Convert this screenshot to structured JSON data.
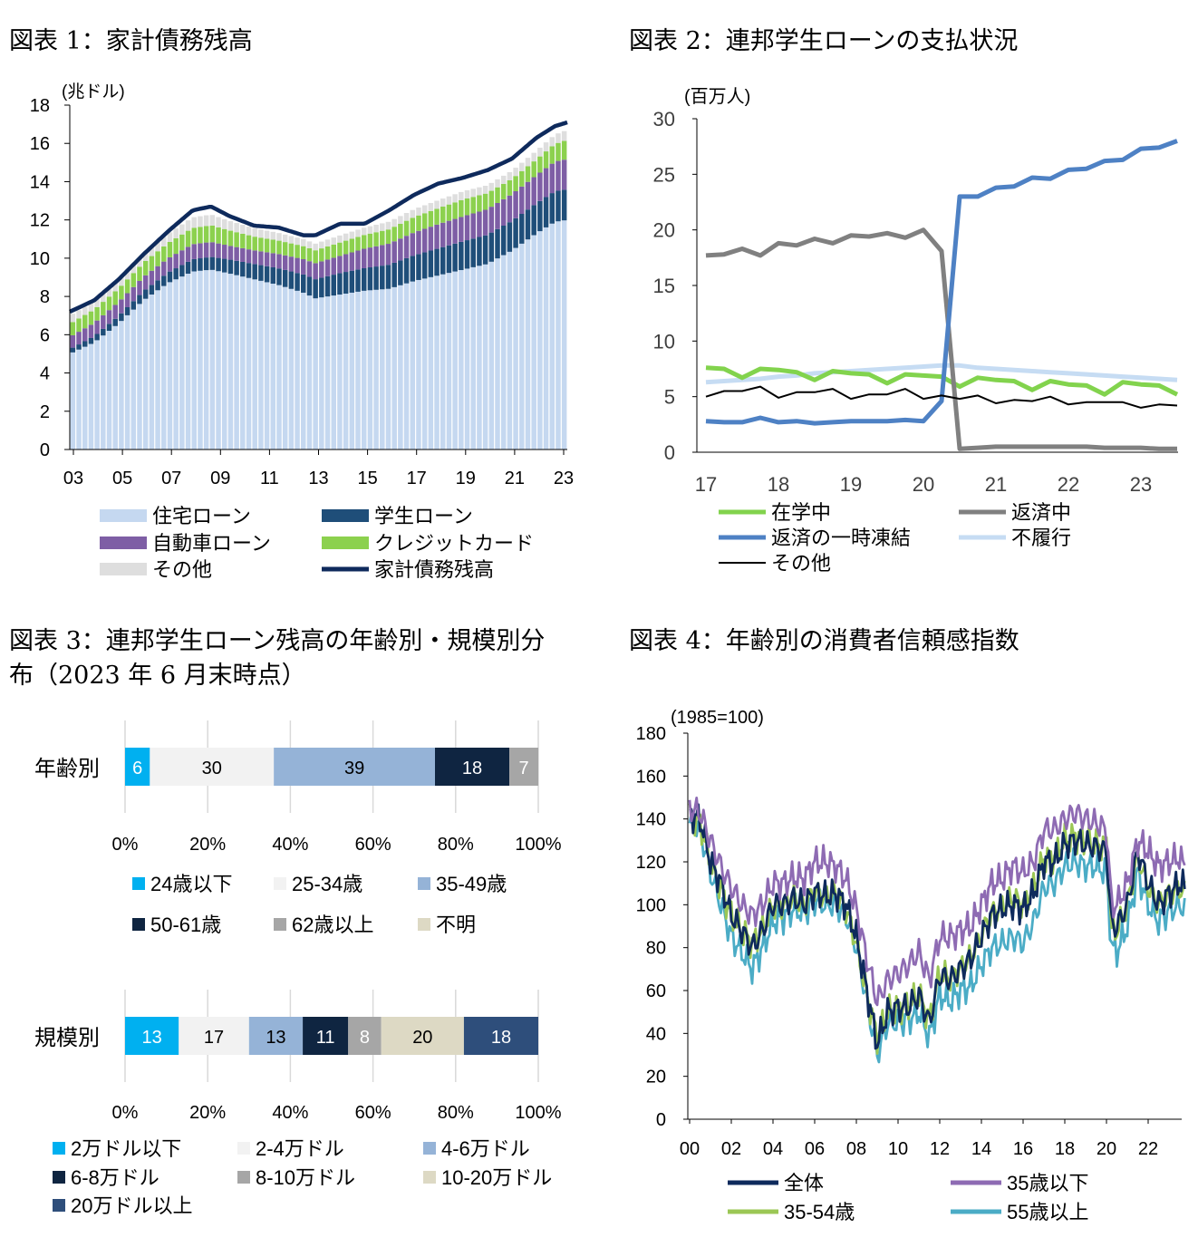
{
  "figures": {
    "fig1_title": "図表 1：家計債務残高",
    "fig2_title": "図表 2：連邦学生ローンの支払状況",
    "fig3_title_line1": "図表 3：連邦学生ローン残高の年齢別・規模別分",
    "fig3_title_line2": "布（2023 年 6 月末時点）",
    "fig4_title": "図表 4：年齢別の消費者信頼感指数"
  },
  "colors": {
    "housing": "#c5d8f0",
    "student": "#1f4e79",
    "auto": "#7e5ea5",
    "credit": "#8cd14e",
    "other1": "#dedede",
    "total1": "#0e2a5c",
    "in_school": "#82d34d",
    "repaying": "#808080",
    "forbearance": "#4e81c4",
    "default": "#c6dcf3",
    "other2": "#000000",
    "c_all": "#0e2a5c",
    "c_u35": "#8e6bb3",
    "c_35_54": "#9bc755",
    "c_55": "#4bacc6",
    "age_cols": [
      "#00b0f0",
      "#f2f2f2",
      "#95b3d7",
      "#0f2541",
      "#a6a6a6",
      "#ddd9c4"
    ],
    "size_cols": [
      "#00b0f0",
      "#f2f2f2",
      "#95b3d7",
      "#0f2541",
      "#a6a6a6",
      "#ddd9c4",
      "#2e4e7b"
    ]
  },
  "chart_data": [
    {
      "id": "fig1",
      "type": "bar",
      "title": "図表 1：家計債務残高",
      "ylabel": "(兆ドル)",
      "ylim": [
        0,
        18
      ],
      "yticks": [
        0,
        2,
        4,
        6,
        8,
        10,
        12,
        14,
        16,
        18
      ],
      "xtick_labels": [
        "03",
        "05",
        "07",
        "09",
        "11",
        "13",
        "15",
        "17",
        "19",
        "21",
        "23"
      ],
      "x_start_year": 2003,
      "x_end_year": 2023.25,
      "anchors": {
        "t": [
          2003,
          2004,
          2005,
          2006,
          2007,
          2008,
          2008.75,
          2009.5,
          2010.5,
          2011.5,
          2012.5,
          2013.0,
          2014,
          2015,
          2016,
          2017,
          2018,
          2019,
          2020,
          2021,
          2022,
          2022.75,
          2023.25
        ],
        "housing": [
          5.0,
          5.6,
          6.6,
          7.8,
          8.7,
          9.3,
          9.4,
          9.2,
          8.9,
          8.6,
          8.2,
          7.9,
          8.1,
          8.3,
          8.4,
          8.8,
          9.1,
          9.4,
          9.7,
          10.4,
          11.3,
          11.9,
          12.0
        ],
        "student": [
          0.24,
          0.32,
          0.39,
          0.48,
          0.55,
          0.64,
          0.67,
          0.73,
          0.8,
          0.87,
          0.95,
          1.0,
          1.12,
          1.18,
          1.26,
          1.34,
          1.41,
          1.48,
          1.52,
          1.55,
          1.57,
          1.6,
          1.6
        ],
        "auto": [
          0.64,
          0.7,
          0.73,
          0.74,
          0.74,
          0.79,
          0.78,
          0.72,
          0.71,
          0.75,
          0.8,
          0.84,
          0.9,
          1.02,
          1.1,
          1.2,
          1.27,
          1.3,
          1.34,
          1.4,
          1.47,
          1.55,
          1.58
        ],
        "credit": [
          0.69,
          0.7,
          0.71,
          0.75,
          0.8,
          0.85,
          0.87,
          0.8,
          0.72,
          0.7,
          0.68,
          0.67,
          0.7,
          0.72,
          0.75,
          0.8,
          0.83,
          0.88,
          0.84,
          0.79,
          0.83,
          0.92,
          1.0
        ],
        "other": [
          0.44,
          0.42,
          0.45,
          0.47,
          0.5,
          0.55,
          0.56,
          0.5,
          0.44,
          0.4,
          0.37,
          0.35,
          0.37,
          0.38,
          0.4,
          0.41,
          0.42,
          0.43,
          0.41,
          0.43,
          0.45,
          0.49,
          0.52
        ],
        "total": [
          7.2,
          7.8,
          8.9,
          10.2,
          11.4,
          12.5,
          12.7,
          12.2,
          11.7,
          11.6,
          11.2,
          11.2,
          11.8,
          11.8,
          12.5,
          13.3,
          13.9,
          14.2,
          14.6,
          15.2,
          16.3,
          16.9,
          17.1
        ]
      },
      "legend": [
        "住宅ローン",
        "学生ローン",
        "自動車ローン",
        "クレジットカード",
        "その他",
        "家計債務残高"
      ]
    },
    {
      "id": "fig2",
      "type": "line",
      "title": "図表 2：連邦学生ローンの支払状況",
      "ylabel": "(百万人)",
      "ylim": [
        0,
        30
      ],
      "yticks": [
        0,
        5,
        10,
        15,
        20,
        25,
        30
      ],
      "xtick_labels": [
        "17",
        "18",
        "19",
        "20",
        "21",
        "22",
        "23"
      ],
      "x_start": 2017,
      "x_end": 2023.6,
      "x": [
        2017.0,
        2017.25,
        2017.5,
        2017.75,
        2018.0,
        2018.25,
        2018.5,
        2018.75,
        2019.0,
        2019.25,
        2019.5,
        2019.75,
        2020.0,
        2020.25,
        2020.5,
        2020.75,
        2021.0,
        2021.25,
        2021.5,
        2021.75,
        2022.0,
        2022.25,
        2022.5,
        2022.75,
        2023.0,
        2023.25,
        2023.5
      ],
      "series": [
        {
          "name": "在学中",
          "values": [
            7.6,
            7.5,
            6.7,
            7.5,
            7.4,
            7.2,
            6.5,
            7.3,
            7.1,
            7.0,
            6.2,
            7.0,
            6.9,
            6.8,
            5.9,
            6.7,
            6.5,
            6.4,
            5.6,
            6.4,
            6.1,
            6.0,
            5.2,
            6.3,
            6.1,
            6.0,
            5.2
          ]
        },
        {
          "name": "返済中",
          "values": [
            17.7,
            17.8,
            18.3,
            17.7,
            18.8,
            18.6,
            19.2,
            18.8,
            19.5,
            19.4,
            19.7,
            19.3,
            20.0,
            18.1,
            0.3,
            0.4,
            0.5,
            0.5,
            0.5,
            0.5,
            0.5,
            0.5,
            0.4,
            0.4,
            0.4,
            0.3,
            0.3
          ]
        },
        {
          "name": "返済の一時凍結",
          "values": [
            2.8,
            2.7,
            2.7,
            3.1,
            2.7,
            2.8,
            2.6,
            2.7,
            2.8,
            2.8,
            2.8,
            2.9,
            2.8,
            4.6,
            23.0,
            23.0,
            23.8,
            23.9,
            24.7,
            24.6,
            25.4,
            25.5,
            26.2,
            26.3,
            27.3,
            27.4,
            28.0
          ]
        },
        {
          "name": "不履行",
          "values": [
            6.3,
            6.4,
            6.5,
            6.6,
            6.8,
            6.9,
            7.1,
            7.2,
            7.3,
            7.4,
            7.5,
            7.6,
            7.7,
            7.8,
            7.8,
            7.6,
            7.5,
            7.4,
            7.3,
            7.2,
            7.1,
            7.0,
            6.9,
            6.8,
            6.7,
            6.6,
            6.5
          ]
        },
        {
          "name": "その他",
          "values": [
            5.0,
            5.5,
            5.5,
            5.9,
            4.9,
            5.4,
            5.4,
            5.7,
            4.8,
            5.2,
            5.2,
            5.7,
            4.8,
            5.1,
            4.8,
            5.1,
            4.4,
            4.7,
            4.6,
            5.0,
            4.3,
            4.5,
            4.5,
            4.5,
            4.0,
            4.3,
            4.2
          ]
        }
      ]
    },
    {
      "id": "fig3",
      "type": "bar",
      "subtype": "stacked-horizontal-100",
      "title": "図表 3：連邦学生ローン残高の年齢別・規模別分布（2023 年 6 月末時点）",
      "xticks": [
        "0%",
        "20%",
        "40%",
        "60%",
        "80%",
        "100%"
      ],
      "rows": [
        {
          "label": "年齢別",
          "values": [
            6,
            30,
            39,
            18,
            7
          ],
          "legend": [
            "24歳以下",
            "25-34歳",
            "35-49歳",
            "50-61歳",
            "62歳以上",
            "不明"
          ]
        },
        {
          "label": "規模別",
          "values": [
            13,
            17,
            13,
            11,
            8,
            20,
            18
          ],
          "legend": [
            "2万ドル以下",
            "2-4万ドル",
            "4-6万ドル",
            "6-8万ドル",
            "8-10万ドル",
            "10-20万ドル",
            "20万ドル以上"
          ]
        }
      ]
    },
    {
      "id": "fig4",
      "type": "line",
      "title": "図表 4：年齢別の消費者信頼感指数",
      "ylabel": "(1985=100)",
      "ylim": [
        0,
        180
      ],
      "yticks": [
        0,
        20,
        40,
        60,
        80,
        100,
        120,
        140,
        160,
        180
      ],
      "xtick_labels": [
        "00",
        "02",
        "04",
        "06",
        "08",
        "10",
        "12",
        "14",
        "16",
        "18",
        "20",
        "22"
      ],
      "x_start_year": 2000,
      "x_end_year": 2023.75,
      "anchors": {
        "t": [
          2000,
          2000.5,
          2001,
          2001.5,
          2002,
          2002.5,
          2003,
          2003.5,
          2004,
          2004.5,
          2005,
          2005.5,
          2006,
          2006.5,
          2007,
          2007.5,
          2008,
          2008.5,
          2009,
          2009.5,
          2010,
          2010.5,
          2011,
          2011.5,
          2012,
          2012.5,
          2013,
          2013.5,
          2014,
          2014.5,
          2015,
          2015.5,
          2016,
          2016.5,
          2017,
          2017.5,
          2018,
          2018.5,
          2019,
          2019.5,
          2020,
          2020.25,
          2020.5,
          2021,
          2021.5,
          2022,
          2022.5,
          2023,
          2023.5,
          2023.75
        ],
        "all": [
          142,
          140,
          120,
          110,
          95,
          88,
          80,
          88,
          100,
          100,
          103,
          100,
          106,
          104,
          105,
          100,
          85,
          60,
          35,
          50,
          52,
          52,
          58,
          45,
          67,
          65,
          70,
          75,
          85,
          95,
          98,
          100,
          98,
          105,
          120,
          120,
          128,
          130,
          128,
          127,
          125,
          90,
          90,
          100,
          125,
          110,
          100,
          105,
          110,
          108
        ],
        "u35": [
          145,
          143,
          130,
          118,
          108,
          100,
          95,
          100,
          110,
          110,
          113,
          112,
          120,
          120,
          118,
          112,
          98,
          75,
          55,
          65,
          68,
          72,
          78,
          65,
          85,
          85,
          88,
          90,
          100,
          110,
          112,
          118,
          115,
          120,
          135,
          135,
          140,
          143,
          140,
          138,
          135,
          100,
          100,
          110,
          130,
          125,
          118,
          120,
          122,
          118
        ],
        "m3554": [
          141,
          138,
          120,
          108,
          95,
          88,
          82,
          88,
          100,
          100,
          103,
          100,
          106,
          104,
          105,
          98,
          82,
          58,
          38,
          50,
          52,
          53,
          58,
          46,
          68,
          66,
          70,
          76,
          86,
          96,
          100,
          103,
          100,
          108,
          122,
          122,
          130,
          132,
          130,
          128,
          128,
          88,
          88,
          100,
          123,
          108,
          100,
          105,
          108,
          105
        ],
        "o55": [
          138,
          135,
          115,
          100,
          85,
          78,
          70,
          80,
          92,
          94,
          98,
          96,
          102,
          100,
          100,
          95,
          80,
          55,
          30,
          45,
          45,
          46,
          50,
          38,
          58,
          55,
          60,
          62,
          72,
          80,
          82,
          85,
          82,
          92,
          108,
          110,
          118,
          120,
          118,
          118,
          115,
          80,
          78,
          90,
          115,
          100,
          92,
          97,
          100,
          98
        ]
      },
      "legend": [
        "全体",
        "35歳以下",
        "35-54歳",
        "55歳以上"
      ]
    }
  ]
}
